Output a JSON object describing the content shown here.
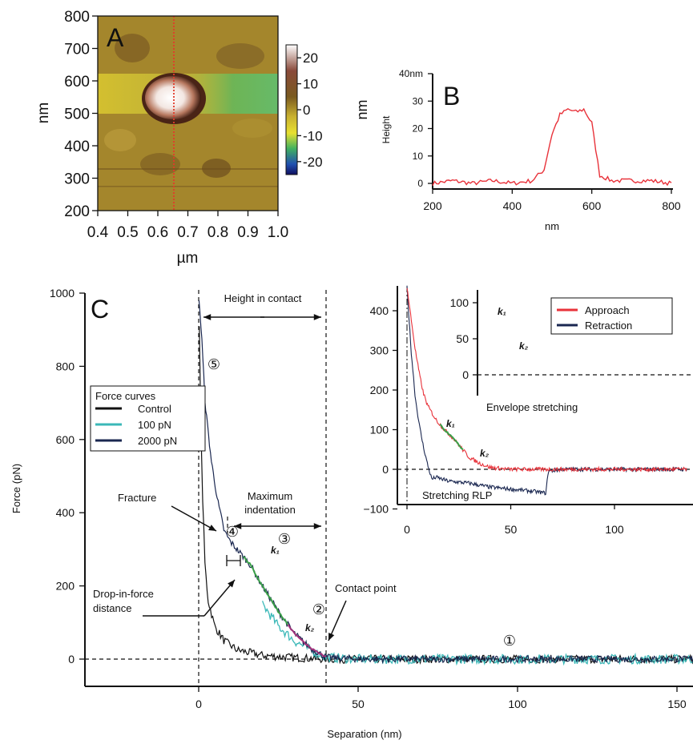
{
  "chart_data": [
    {
      "panel": "A",
      "type": "heatmap",
      "xlabel": "µm",
      "ylabel": "nm",
      "xlim": [
        0.4,
        1.0
      ],
      "ylim": [
        200,
        800
      ],
      "x_ticks": [
        "0.4",
        "0.5",
        "0.6",
        "0.7",
        "0.8",
        "0.9",
        "1.0"
      ],
      "y_ticks": [
        "800",
        "700",
        "600",
        "500",
        "400",
        "300",
        "200"
      ],
      "colorbar": {
        "label": "nm",
        "ticks": [
          "20",
          "10",
          "0",
          "-10",
          "-20"
        ],
        "range": [
          -25,
          25
        ]
      },
      "features": {
        "bump_center": [
          0.65,
          545
        ],
        "profile_line_x": 0.65
      }
    },
    {
      "panel": "B",
      "type": "line",
      "xlabel": "nm",
      "ylabel": "Height",
      "xlim": [
        200,
        800
      ],
      "ylim": [
        0,
        40
      ],
      "x_ticks": [
        "200",
        "400",
        "600",
        "800"
      ],
      "y_ticks": [
        "40nm",
        "30",
        "20",
        "10",
        "0"
      ],
      "series": [
        {
          "color": "#e8323a",
          "x": [
            200,
            250,
            300,
            350,
            400,
            450,
            480,
            500,
            520,
            540,
            560,
            580,
            600,
            620,
            650,
            700,
            750,
            800
          ],
          "y": [
            0,
            1,
            0,
            1,
            0,
            1,
            5,
            18,
            25,
            27,
            26,
            27,
            22,
            3,
            1,
            1,
            1,
            0
          ]
        }
      ]
    },
    {
      "panel": "C",
      "type": "line",
      "xlabel": "Separation (nm)",
      "ylabel": "Force (pN)",
      "xlim": [
        -35,
        158
      ],
      "ylim": [
        -20,
        1000
      ],
      "x_ticks": [
        "0",
        "50",
        "100",
        "150"
      ],
      "y_ticks": [
        "1000",
        "800",
        "600",
        "400",
        "200",
        "0"
      ],
      "legend_title": "Force curves",
      "annotations": {
        "height_in_contact": "Height in contact",
        "fracture": "Fracture",
        "max_indentation": "Maximum\nindentation",
        "drop_in_force": "Drop-in-force\ndistance",
        "contact_point": "Contact point",
        "k1": "k₁",
        "k2": "k₂",
        "circled": [
          "①",
          "②",
          "③",
          "④",
          "⑤"
        ]
      },
      "series": [
        {
          "name": "Control",
          "color": "#111111",
          "x": [
            0,
            1,
            2,
            3,
            5,
            8,
            12,
            20,
            30,
            40,
            60,
            100,
            158
          ],
          "y": [
            1000,
            500,
            250,
            160,
            90,
            50,
            25,
            10,
            4,
            0,
            0,
            0,
            0
          ]
        },
        {
          "name": "100 pN",
          "color": "#3bb8b8",
          "x": [
            20,
            25,
            30,
            35,
            40,
            50,
            100,
            158
          ],
          "y": [
            150,
            90,
            50,
            25,
            5,
            0,
            0,
            0
          ]
        },
        {
          "name": "2000 pN",
          "color": "#1a2750",
          "x": [
            0,
            1,
            2,
            4,
            6,
            8,
            10,
            12,
            16,
            20,
            25,
            30,
            35,
            40,
            50,
            100,
            158
          ],
          "y": [
            1000,
            870,
            700,
            540,
            430,
            350,
            320,
            300,
            260,
            200,
            130,
            70,
            30,
            5,
            0,
            0,
            0
          ]
        }
      ]
    },
    {
      "panel": "C-inset",
      "type": "line",
      "xlim": [
        -8,
        135
      ],
      "ylim": [
        -100,
        460
      ],
      "x_ticks": [
        "0",
        "50",
        "100"
      ],
      "y_ticks": [
        "400",
        "300",
        "200",
        "100",
        "0",
        "−100"
      ],
      "annotations": {
        "stretching": "Stretching RLP",
        "k1": "k₁",
        "k2": "k₂"
      },
      "series": [
        {
          "name": "Approach",
          "color": "#e8323a",
          "x": [
            0,
            2,
            4,
            6,
            8,
            10,
            14,
            18,
            22,
            26,
            30,
            35,
            40,
            45,
            50,
            60,
            80,
            100,
            135
          ],
          "y": [
            460,
            380,
            300,
            240,
            190,
            160,
            125,
            100,
            80,
            55,
            30,
            15,
            5,
            2,
            0,
            0,
            0,
            0,
            0
          ]
        },
        {
          "name": "Retraction",
          "color": "#1a2750",
          "x": [
            0,
            2,
            4,
            6,
            8,
            10,
            12,
            14,
            20,
            30,
            40,
            50,
            60,
            67,
            68,
            75,
            100,
            135
          ],
          "y": [
            460,
            300,
            180,
            110,
            55,
            10,
            -25,
            -20,
            -30,
            -35,
            -45,
            -50,
            -55,
            -60,
            -5,
            0,
            0,
            0
          ]
        }
      ]
    },
    {
      "panel": "C-inset-zoom",
      "type": "line",
      "ylim": [
        -30,
        115
      ],
      "y_ticks": [
        "100",
        "50",
        "0"
      ],
      "annotations": {
        "envelope": "Envelope stretching",
        "k1": "k₁",
        "k2": "k₂"
      },
      "series": [
        {
          "name": "Approach",
          "color": "#e8323a",
          "x": [
            0,
            5,
            10,
            15,
            20,
            30,
            40,
            60,
            80
          ],
          "y": [
            115,
            60,
            30,
            22,
            12,
            5,
            2,
            0,
            0
          ]
        },
        {
          "name": "Retraction",
          "color": "#1a2750",
          "x": [
            0,
            5,
            10,
            15,
            20,
            30,
            40,
            48,
            52,
            60,
            80
          ],
          "y": [
            115,
            60,
            25,
            10,
            -5,
            -12,
            -15,
            -18,
            0,
            0,
            0
          ]
        }
      ]
    }
  ],
  "labels": {
    "panel_a": "A",
    "panel_b": "B",
    "panel_c": "C"
  }
}
